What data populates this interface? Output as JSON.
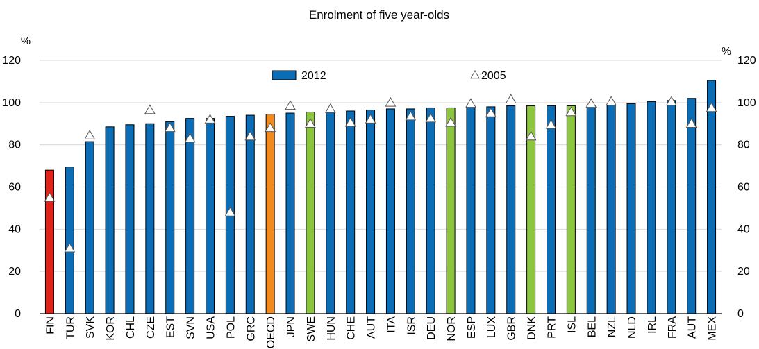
{
  "chart_data": {
    "type": "bar",
    "title": "Enrolment of five year-olds",
    "y_unit_left": "%",
    "y_unit_right": "%",
    "ylim": [
      0,
      120
    ],
    "yticks": [
      0,
      20,
      40,
      60,
      80,
      100,
      120
    ],
    "grid": true,
    "legend_position": "top-center",
    "categories": [
      "FIN",
      "TUR",
      "SVK",
      "KOR",
      "CHL",
      "CZE",
      "EST",
      "SVN",
      "USA",
      "POL",
      "GRC",
      "OECD",
      "JPN",
      "SWE",
      "HUN",
      "CHE",
      "AUT",
      "ITA",
      "ISR",
      "DEU",
      "NOR",
      "ESP",
      "LUX",
      "GBR",
      "DNK",
      "PRT",
      "ISL",
      "BEL",
      "NZL",
      "NLD",
      "IRL",
      "FRA",
      "AUT",
      "MEX"
    ],
    "series": [
      {
        "name": "2012",
        "kind": "bar",
        "values": [
          68,
          69.5,
          81.5,
          88.5,
          89.5,
          90,
          91,
          92.5,
          92.5,
          93.5,
          94,
          94.5,
          95,
          95.5,
          95.5,
          96,
          96.5,
          97,
          97,
          97.5,
          97.5,
          98,
          98,
          98.5,
          98.5,
          98.5,
          98.5,
          98.5,
          99,
          99.5,
          100.5,
          101,
          102,
          110.5
        ],
        "colors": [
          "#e2231a",
          "#0b6db5",
          "#0b6db5",
          "#0b6db5",
          "#0b6db5",
          "#0b6db5",
          "#0b6db5",
          "#0b6db5",
          "#0b6db5",
          "#0b6db5",
          "#0b6db5",
          "#f28a1e",
          "#0b6db5",
          "#8cc63f",
          "#0b6db5",
          "#0b6db5",
          "#0b6db5",
          "#0b6db5",
          "#0b6db5",
          "#0b6db5",
          "#8cc63f",
          "#0b6db5",
          "#0b6db5",
          "#0b6db5",
          "#8cc63f",
          "#0b6db5",
          "#8cc63f",
          "#0b6db5",
          "#0b6db5",
          "#0b6db5",
          "#0b6db5",
          "#0b6db5",
          "#0b6db5",
          "#0b6db5"
        ]
      },
      {
        "name": "2005",
        "kind": "marker",
        "marker": "triangle",
        "values": [
          55,
          31,
          84.5,
          null,
          null,
          96.5,
          88,
          83,
          92,
          48,
          84,
          88,
          98.5,
          90,
          97,
          90.5,
          92,
          100,
          93.5,
          92.5,
          90.5,
          99.5,
          95,
          101.5,
          84,
          89.5,
          95.5,
          99.5,
          100.5,
          null,
          null,
          100.5,
          90,
          97.5
        ]
      }
    ],
    "legend": [
      {
        "label": "2012",
        "swatch": "bar",
        "color": "#0b6db5"
      },
      {
        "label": "2005",
        "swatch": "triangle"
      }
    ]
  }
}
